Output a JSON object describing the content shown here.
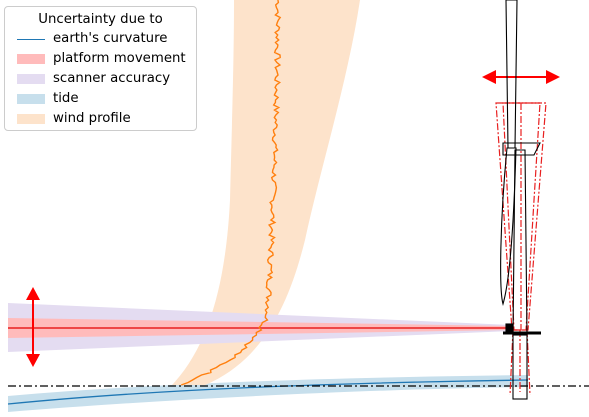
{
  "legend": {
    "title": "Uncertainty due to",
    "items": [
      {
        "label": "earth's curvature",
        "kind": "line",
        "color": "#1f77b4"
      },
      {
        "label": "platform movement",
        "kind": "patch",
        "color": "#ffbbbb"
      },
      {
        "label": "scanner accuracy",
        "kind": "patch",
        "color": "#e4dcf1"
      },
      {
        "label": "tide",
        "kind": "patch",
        "color": "#c7dfec"
      },
      {
        "label": "wind profile",
        "kind": "patch",
        "color": "#fde3cb"
      }
    ]
  },
  "colors": {
    "laser_line": "#e82020",
    "movement_arrow": "#ff0000",
    "wind_profile_line": "#ff7f0e",
    "turbine_outline": "#000000",
    "reference_line": "#000000"
  }
}
